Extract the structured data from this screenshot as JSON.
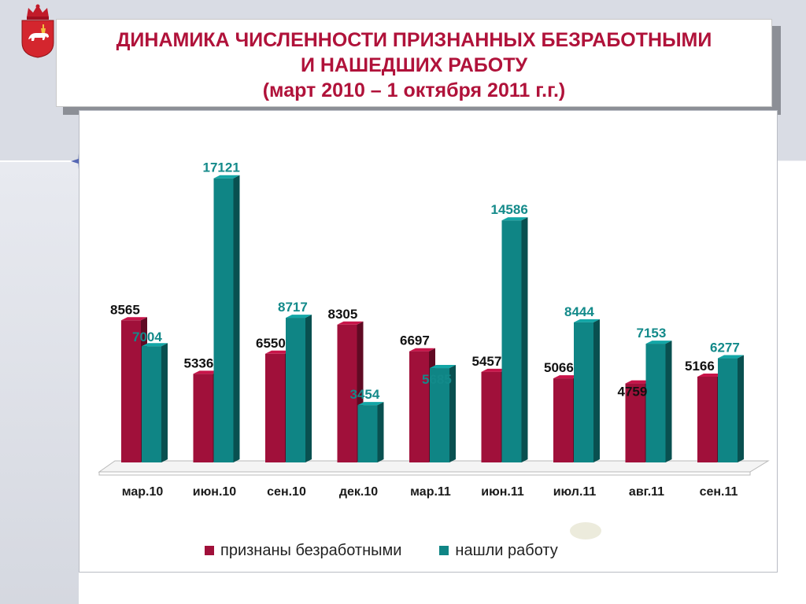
{
  "header": {
    "title_line1": "ДИНАМИКА ЧИСЛЕННОСТИ ПРИЗНАННЫХ БЕЗРАБОТНЫМИ",
    "title_line2": "И НАШЕДШИХ РАБОТУ",
    "title_line3": "(март 2010 – 1 октября 2011 г.г.)",
    "emblem_icon": "coat-of-arms-icon"
  },
  "chart_data": {
    "type": "bar",
    "title": "ДИНАМИКА ЧИСЛЕННОСТИ ПРИЗНАННЫХ БЕЗРАБОТНЫМИ И НАШЕДШИХ РАБОТУ (март 2010 – 1 октября 2011 г.г.)",
    "categories": [
      "мар.10",
      "июн.10",
      "сен.10",
      "дек.10",
      "мар.11",
      "июн.11",
      "июл.11",
      "авг.11",
      "сен.11"
    ],
    "series": [
      {
        "name": "признаны безработными",
        "color": "#a0103a",
        "label_color": "#111111",
        "values": [
          8565,
          5336,
          6550,
          8305,
          6697,
          5457,
          5066,
          4759,
          5166
        ]
      },
      {
        "name": "нашли работу",
        "color": "#0f8585",
        "label_color": "#138a8a",
        "values": [
          7004,
          17121,
          8717,
          3454,
          5685,
          14586,
          8444,
          7153,
          6277
        ]
      }
    ],
    "ylim": [
      0,
      18000
    ],
    "grid": false,
    "legend_position": "bottom",
    "xlabel": "",
    "ylabel": ""
  }
}
